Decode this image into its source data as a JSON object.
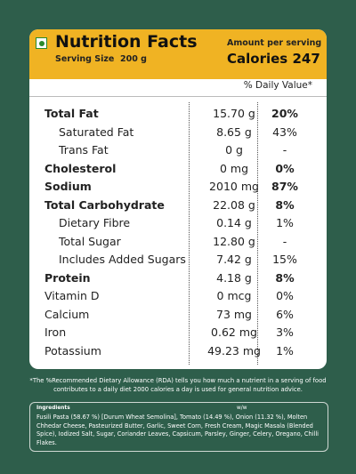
{
  "header": {
    "title": "Nutrition Facts",
    "serving": "Serving Size  200 g",
    "amount_label": "Amount per serving",
    "calories": "Calories 247"
  },
  "dv_header": "% Daily Value*",
  "rows": [
    {
      "name": "Total Fat",
      "amount": "15.70 g",
      "dv": "20%",
      "bold": true,
      "indent": false
    },
    {
      "name": "Saturated Fat",
      "amount": "8.65 g",
      "dv": "43%",
      "bold": false,
      "indent": true
    },
    {
      "name": "Trans Fat",
      "amount": "0 g",
      "dv": "-",
      "bold": false,
      "indent": true
    },
    {
      "name": "Cholesterol",
      "amount": "0 mg",
      "dv": "0%",
      "bold": true,
      "indent": false
    },
    {
      "name": "Sodium",
      "amount": "2010 mg",
      "dv": "87%",
      "bold": true,
      "indent": false
    },
    {
      "name": "Total Carbohydrate",
      "amount": "22.08 g",
      "dv": "8%",
      "bold": true,
      "indent": false
    },
    {
      "name": "Dietary Fibre",
      "amount": "0.14 g",
      "dv": "1%",
      "bold": false,
      "indent": true
    },
    {
      "name": "Total Sugar",
      "amount": "12.80 g",
      "dv": "-",
      "bold": false,
      "indent": true
    },
    {
      "name": "Includes Added Sugars",
      "amount": "7.42 g",
      "dv": "15%",
      "bold": false,
      "indent": true
    },
    {
      "name": "Protein",
      "amount": "4.18 g",
      "dv": "8%",
      "bold": true,
      "indent": false
    },
    {
      "name": "Vitamin D",
      "amount": "0 mcg",
      "dv": "0%",
      "bold": false,
      "indent": false
    },
    {
      "name": "Calcium",
      "amount": "73 mg",
      "dv": "6%",
      "bold": false,
      "indent": false
    },
    {
      "name": "Iron",
      "amount": "0.62 mg",
      "dv": "3%",
      "bold": false,
      "indent": false
    },
    {
      "name": "Potassium",
      "amount": "49.23 mg",
      "dv": "1%",
      "bold": false,
      "indent": false
    }
  ],
  "footnote": "*The %Recommended Dietary Allowance (RDA) tells you how much a nutrient in a serving of food contributes to a daily diet 2000 calories a day is used for general nutrition advice.",
  "ingredients": {
    "label": "Ingredients",
    "unit": "w/w",
    "text": "Fusili Pasta (58.67 %) [Durum Wheat Semolina], Tomato (14.49 %), Onion (11.32 %), Molten Chhedar Cheese, Pasteurized Butter, Garlic, Sweet Corn, Fresh Cream, Magic Masala (Blended Spice), Iodized Salt, Sugar, Coriander Leaves, Capsicum, Parsley, Ginger, Celery, Oregano, Chilli Flakes."
  }
}
